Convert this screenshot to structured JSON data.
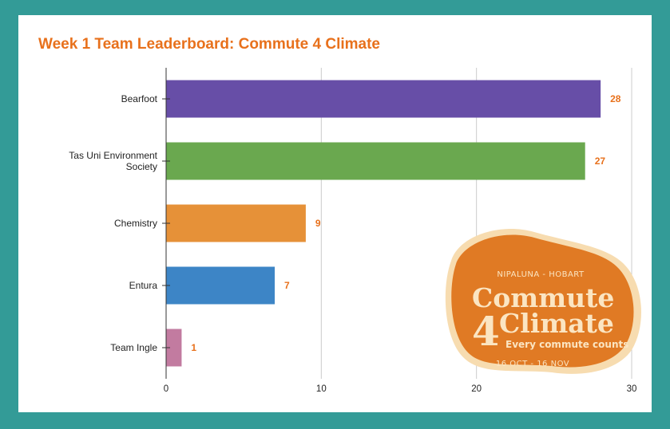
{
  "colors": {
    "background": "#339b97",
    "title": "#e8711c",
    "data_label": "#e8711c",
    "logo_fill": "#e07a24",
    "logo_rim": "#f7dcb0",
    "logo_text": "#fbe5c2"
  },
  "chart_data": {
    "type": "bar",
    "orientation": "horizontal",
    "title": "Week 1 Team Leaderboard: Commute 4 Climate",
    "xlabel": "",
    "ylabel": "",
    "categories": [
      "Bearfoot",
      "Tas Uni Environment Society",
      "Chemistry",
      "Entura",
      "Team Ingle"
    ],
    "category_lines": [
      [
        "Bearfoot"
      ],
      [
        "Tas Uni Environment",
        "Society"
      ],
      [
        "Chemistry"
      ],
      [
        "Entura"
      ],
      [
        "Team Ingle"
      ]
    ],
    "values": [
      28,
      27,
      9,
      7,
      1
    ],
    "value_labels": [
      "28",
      "27",
      "9",
      "7",
      "1"
    ],
    "bar_colors": [
      "#674ea7",
      "#6aa84f",
      "#e69138",
      "#3d85c6",
      "#c27ba0"
    ],
    "xlim": [
      0,
      30
    ],
    "xticks": [
      0,
      10,
      20,
      30
    ],
    "xtick_labels": [
      "0",
      "10",
      "20",
      "30"
    ],
    "grid": true,
    "legend": "none"
  },
  "logo": {
    "location": "NIPALUNA - HOBART",
    "word1": "Commute",
    "numeral": "4",
    "word2": "Climate",
    "tagline": "Every commute counts",
    "dates": "16 OCT - 16 NOV"
  }
}
